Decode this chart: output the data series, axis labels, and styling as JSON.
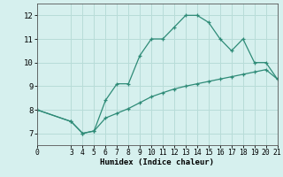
{
  "line1_x": [
    0,
    3,
    4,
    5,
    6,
    7,
    8,
    9,
    10,
    11,
    12,
    13,
    14,
    15,
    16,
    17,
    18,
    19,
    20,
    21
  ],
  "line1_y": [
    8.0,
    7.5,
    7.0,
    7.1,
    8.4,
    9.1,
    9.1,
    10.3,
    11.0,
    11.0,
    11.5,
    12.0,
    12.0,
    11.7,
    11.0,
    10.5,
    11.0,
    10.0,
    10.0,
    9.3
  ],
  "line2_x": [
    0,
    3,
    4,
    5,
    6,
    7,
    8,
    9,
    10,
    11,
    12,
    13,
    14,
    15,
    16,
    17,
    18,
    19,
    20,
    21
  ],
  "line2_y": [
    8.0,
    7.5,
    7.0,
    7.1,
    7.65,
    7.85,
    8.05,
    8.3,
    8.55,
    8.72,
    8.88,
    9.0,
    9.1,
    9.2,
    9.3,
    9.4,
    9.5,
    9.6,
    9.7,
    9.3
  ],
  "line_color": "#2e8b77",
  "bg_color": "#d6f0ee",
  "grid_color": "#b8dcd8",
  "xlabel": "Humidex (Indice chaleur)",
  "xlim": [
    0,
    21
  ],
  "ylim": [
    6.5,
    12.5
  ],
  "xticks": [
    0,
    3,
    4,
    5,
    6,
    7,
    8,
    9,
    10,
    11,
    12,
    13,
    14,
    15,
    16,
    17,
    18,
    19,
    20,
    21
  ],
  "yticks": [
    7,
    8,
    9,
    10,
    11,
    12
  ],
  "marker": "+",
  "markersize": 3.5,
  "linewidth": 0.9
}
